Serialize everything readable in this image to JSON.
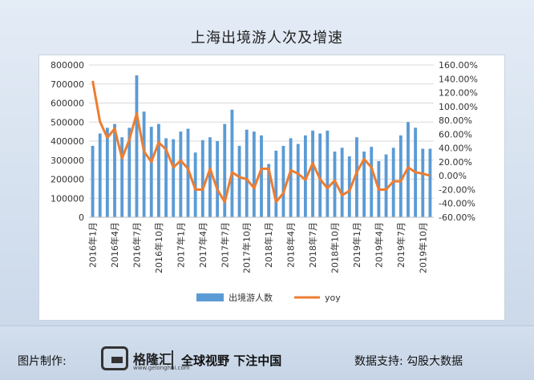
{
  "title": "上海出境游人次及增速",
  "footer": {
    "made_by_label": "图片制作:",
    "brand": "格隆汇",
    "brand_url": "www.gelonghui.com",
    "slogan": "全球视野 下注中国",
    "data_support": "数据支持: 勾股大数据"
  },
  "colors": {
    "bar": "#5b9bd5",
    "line": "#ed7d31",
    "grid": "#d9d9d9"
  },
  "chart_data": {
    "type": "bar",
    "title": "上海出境游人次及增速",
    "x": [
      "2016年1月",
      "2016年2月",
      "2016年3月",
      "2016年4月",
      "2016年5月",
      "2016年6月",
      "2016年7月",
      "2016年8月",
      "2016年9月",
      "2016年10月",
      "2016年11月",
      "2016年12月",
      "2017年1月",
      "2017年2月",
      "2017年3月",
      "2017年4月",
      "2017年5月",
      "2017年6月",
      "2017年7月",
      "2017年8月",
      "2017年9月",
      "2017年10月",
      "2017年11月",
      "2017年12月",
      "2018年1月",
      "2018年2月",
      "2018年3月",
      "2018年4月",
      "2018年5月",
      "2018年6月",
      "2018年7月",
      "2018年8月",
      "2018年9月",
      "2018年10月",
      "2018年11月",
      "2018年12月",
      "2019年1月",
      "2019年2月",
      "2019年3月",
      "2019年4月",
      "2019年5月",
      "2019年6月",
      "2019年7月",
      "2019年8月",
      "2019年9月",
      "2019年10月",
      "2019年11月"
    ],
    "x_tick_labels": [
      "2016年1月",
      "2016年4月",
      "2016年7月",
      "2016年10月",
      "2017年1月",
      "2017年4月",
      "2017年7月",
      "2017年10月",
      "2018年1月",
      "2018年4月",
      "2018年7月",
      "2018年10月",
      "2019年1月",
      "2019年4月",
      "2019年7月",
      "2019年10月"
    ],
    "series": [
      {
        "name": "出境游人数",
        "type": "bar",
        "axis": "left",
        "values": [
          375000,
          440000,
          470000,
          490000,
          420000,
          470000,
          745000,
          555000,
          475000,
          490000,
          415000,
          410000,
          450000,
          465000,
          340000,
          405000,
          420000,
          400000,
          490000,
          565000,
          375000,
          460000,
          450000,
          430000,
          280000,
          350000,
          375000,
          415000,
          385000,
          430000,
          455000,
          440000,
          455000,
          345000,
          365000,
          320000,
          420000,
          345000,
          370000,
          295000,
          330000,
          365000,
          430000,
          500000,
          470000,
          360000,
          360000
        ]
      },
      {
        "name": "yoy",
        "type": "line",
        "axis": "right",
        "values": [
          1.37,
          0.78,
          0.55,
          0.68,
          0.25,
          0.52,
          0.9,
          0.35,
          0.2,
          0.48,
          0.38,
          0.12,
          0.22,
          0.1,
          -0.2,
          -0.2,
          0.1,
          -0.2,
          -0.38,
          0.05,
          -0.02,
          -0.05,
          -0.18,
          0.1,
          0.1,
          -0.38,
          -0.25,
          0.08,
          0.03,
          -0.06,
          0.18,
          -0.05,
          -0.18,
          -0.07,
          -0.28,
          -0.22,
          0.05,
          0.24,
          0.12,
          -0.2,
          -0.2,
          -0.08,
          -0.08,
          0.12,
          0.05,
          0.03,
          0.0
        ]
      }
    ],
    "y_left": {
      "min": 0,
      "max": 800000,
      "ticks": [
        "0",
        "100000",
        "200000",
        "300000",
        "400000",
        "500000",
        "600000",
        "700000",
        "800000"
      ]
    },
    "y_right": {
      "min": -0.6,
      "max": 1.6,
      "ticks": [
        "-60.00%",
        "-40.00%",
        "-20.00%",
        "0.00%",
        "20.00%",
        "40.00%",
        "60.00%",
        "80.00%",
        "100.00%",
        "120.00%",
        "140.00%",
        "160.00%"
      ]
    },
    "legend": {
      "position": "bottom",
      "items": [
        "出境游人数",
        "yoy"
      ]
    },
    "grid": true
  }
}
